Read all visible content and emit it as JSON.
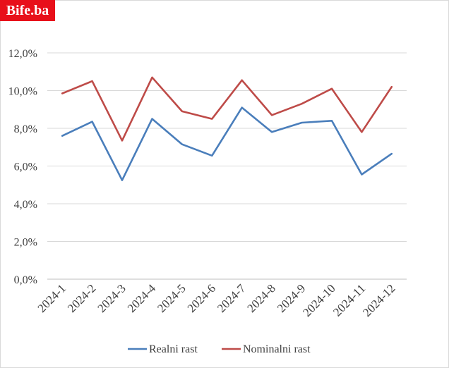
{
  "brand": {
    "logo_text": "Bife.ba",
    "logo_color": "#e8101a"
  },
  "chart_data": {
    "type": "line",
    "title": "",
    "xlabel": "",
    "ylabel": "",
    "categories": [
      "2024-1",
      "2024-2",
      "2024-3",
      "2024-4",
      "2024-5",
      "2024-6",
      "2024-7",
      "2024-8",
      "2024-9",
      "2024-10",
      "2024-11",
      "2024-12"
    ],
    "y_ticks": [
      "0,0%",
      "2,0%",
      "4,0%",
      "6,0%",
      "8,0%",
      "10,0%",
      "12,0%"
    ],
    "ylim": [
      0,
      12
    ],
    "grid": true,
    "legend_position": "bottom",
    "series": [
      {
        "name": "Realni rast",
        "color": "#4a7ebb",
        "values": [
          7.6,
          8.35,
          5.25,
          8.5,
          7.15,
          6.55,
          9.1,
          7.8,
          8.3,
          8.4,
          5.55,
          6.65
        ]
      },
      {
        "name": "Nominalni rast",
        "color": "#be4b48",
        "values": [
          9.85,
          10.5,
          7.35,
          10.7,
          8.9,
          8.5,
          10.55,
          8.7,
          9.3,
          10.1,
          7.8,
          10.2
        ]
      }
    ]
  }
}
